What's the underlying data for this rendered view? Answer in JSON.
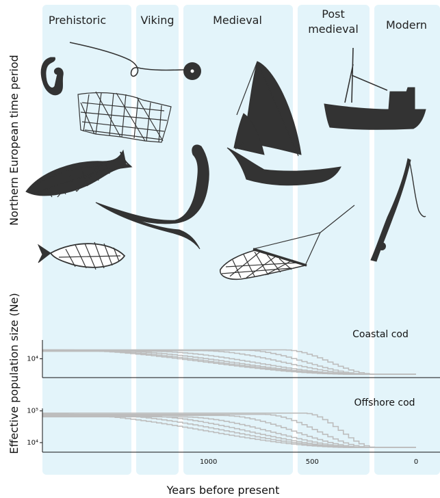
{
  "colors": {
    "band": "#e3f4fa",
    "band_edge": "#cfeaf4",
    "silhouette": "#333333",
    "curve": "#bdbdbd",
    "axis": "#111111"
  },
  "periods": [
    {
      "label": "Prehistoric"
    },
    {
      "label": "Viking"
    },
    {
      "label": "Medieval"
    },
    {
      "label": "Post",
      "label2": "medieval"
    },
    {
      "label": "Modern"
    }
  ],
  "top_axis_title": "Northern European time period",
  "icons": [
    "fish-hook-icon",
    "fishing-line-hook-icon",
    "fishing-net-icon",
    "fish-net-icon",
    "viking-ship-icon",
    "medieval-sailing-ship-icon",
    "trawler-boat-icon",
    "fishing-rod-icon",
    "fish-icon",
    "trawl-net-icon"
  ],
  "chart_data": [
    {
      "type": "line",
      "title": "Coastal cod",
      "ylabel": "Effective population size (Ne)",
      "xlabel": "Years before present",
      "xlim": [
        1800,
        0
      ],
      "yscale": "log",
      "ylim": [
        1000,
        100000
      ],
      "yticks": [
        {
          "value": 10000,
          "label": "10⁴"
        }
      ],
      "series": [
        {
          "plateau": 30000,
          "decline_start": 1750,
          "decline_end": 300,
          "final": 1500
        },
        {
          "plateau": 28000,
          "decline_start": 1650,
          "decline_end": 280,
          "final": 1500
        },
        {
          "plateau": 26000,
          "decline_start": 1500,
          "decline_end": 270,
          "final": 1500
        },
        {
          "plateau": 25000,
          "decline_start": 1300,
          "decline_end": 260,
          "final": 1500
        },
        {
          "plateau": 27000,
          "decline_start": 1050,
          "decline_end": 240,
          "final": 1500
        },
        {
          "plateau": 29000,
          "decline_start": 850,
          "decline_end": 230,
          "final": 1500
        },
        {
          "plateau": 30000,
          "decline_start": 650,
          "decline_end": 200,
          "final": 1500
        }
      ]
    },
    {
      "type": "line",
      "title": "Offshore cod",
      "ylabel": "Effective population size (Ne)",
      "xlabel": "Years before present",
      "xlim": [
        1800,
        0
      ],
      "yscale": "log",
      "ylim": [
        5000,
        120000
      ],
      "yticks": [
        {
          "value": 100000,
          "label": "10⁵"
        },
        {
          "value": 10000,
          "label": "10⁴"
        }
      ],
      "xticks": [
        {
          "value": 1000,
          "label": "1000"
        },
        {
          "value": 500,
          "label": "500"
        },
        {
          "value": 0,
          "label": "0"
        }
      ],
      "series": [
        {
          "plateau": 80000,
          "decline_start": 1750,
          "decline_end": 300,
          "final": 7000
        },
        {
          "plateau": 75000,
          "decline_start": 1550,
          "decline_end": 280,
          "final": 7000
        },
        {
          "plateau": 70000,
          "decline_start": 1350,
          "decline_end": 270,
          "final": 7000
        },
        {
          "plateau": 65000,
          "decline_start": 1150,
          "decline_end": 250,
          "final": 7000
        },
        {
          "plateau": 72000,
          "decline_start": 950,
          "decline_end": 240,
          "final": 7000
        },
        {
          "plateau": 78000,
          "decline_start": 750,
          "decline_end": 220,
          "final": 7000
        },
        {
          "plateau": 85000,
          "decline_start": 550,
          "decline_end": 200,
          "final": 7000
        }
      ]
    }
  ]
}
